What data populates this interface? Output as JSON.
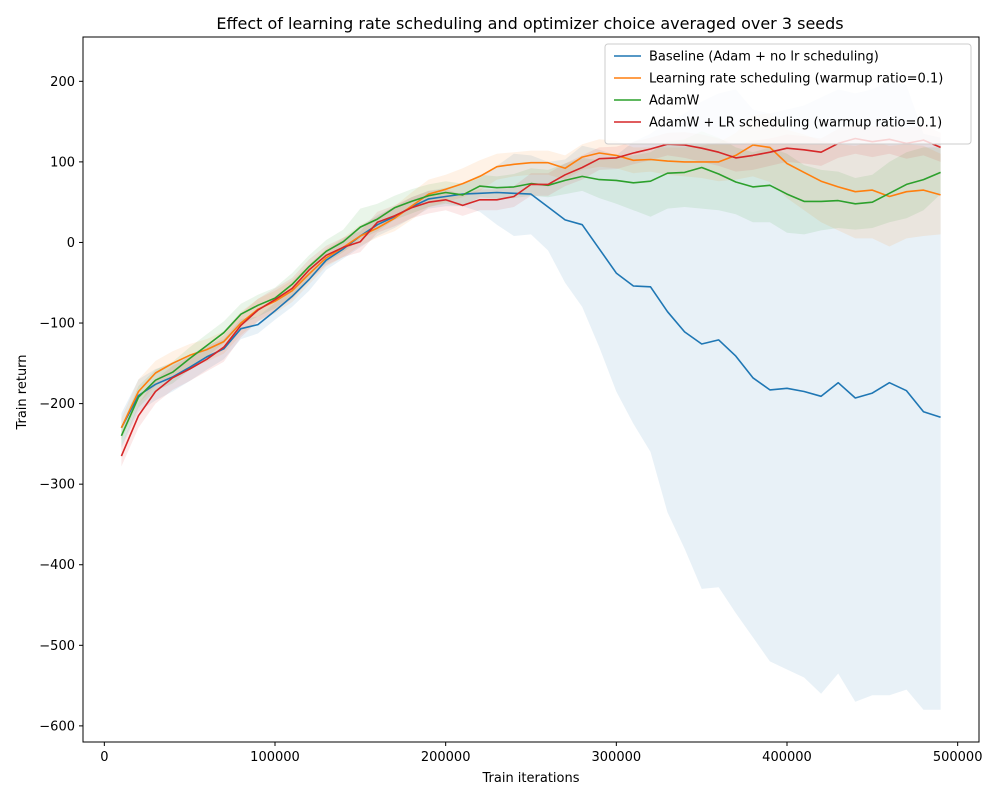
{
  "chart_data": {
    "type": "line",
    "title": "Effect of learning rate scheduling and optimizer choice averaged over 3 seeds",
    "xlabel": "Train iterations",
    "ylabel": "Train return",
    "xlim": [
      -12500,
      512500
    ],
    "ylim": [
      -620,
      255
    ],
    "xticks": [
      0,
      100000,
      200000,
      300000,
      400000,
      500000
    ],
    "yticks": [
      -600,
      -500,
      -400,
      -300,
      -200,
      -100,
      0,
      100,
      200
    ],
    "legend_position": "top-right",
    "grid": false,
    "x": [
      10000,
      20000,
      30000,
      40000,
      50000,
      60000,
      70000,
      80000,
      90000,
      100000,
      110000,
      120000,
      130000,
      140000,
      150000,
      160000,
      170000,
      180000,
      190000,
      200000,
      210000,
      220000,
      230000,
      240000,
      250000,
      260000,
      270000,
      280000,
      290000,
      300000,
      310000,
      320000,
      330000,
      340000,
      350000,
      360000,
      370000,
      380000,
      390000,
      400000,
      410000,
      420000,
      430000,
      440000,
      450000,
      460000,
      470000,
      480000,
      490000
    ],
    "series": [
      {
        "name": "Baseline (Adam + no lr scheduling)",
        "color": "#1f77b4",
        "values": [
          -230,
          -190,
          -176,
          -167,
          -155,
          -142,
          -132,
          -107,
          -102,
          -85,
          -67,
          -46,
          -22,
          -8,
          8,
          22,
          32,
          44,
          54,
          57,
          60,
          61,
          62,
          61,
          60,
          44,
          28,
          22,
          -8,
          -38,
          -54,
          -55,
          -86,
          -111,
          -126,
          -121,
          -141,
          -168,
          -183,
          -181,
          -185,
          -191,
          -174,
          -193,
          -187,
          -174,
          -184,
          -210,
          -217
        ],
        "lower": [
          -255,
          -210,
          -196,
          -185,
          -172,
          -158,
          -145,
          -120,
          -113,
          -96,
          -80,
          -60,
          -34,
          -20,
          -6,
          8,
          18,
          30,
          42,
          45,
          45,
          38,
          22,
          8,
          10,
          -10,
          -50,
          -80,
          -130,
          -185,
          -225,
          -260,
          -335,
          -380,
          -430,
          -428,
          -460,
          -490,
          -520,
          -530,
          -540,
          -560,
          -535,
          -570,
          -562,
          -562,
          -555,
          -580,
          -580
        ],
        "upper": [
          -212,
          -170,
          -157,
          -150,
          -140,
          -128,
          -120,
          -95,
          -92,
          -75,
          -56,
          -33,
          -10,
          4,
          20,
          34,
          44,
          56,
          64,
          68,
          72,
          80,
          95,
          110,
          108,
          100,
          103,
          120,
          115,
          108,
          125,
          135,
          150,
          160,
          175,
          185,
          190,
          165,
          160,
          165,
          170,
          180,
          190,
          185,
          190,
          200,
          195,
          135,
          130
        ]
      },
      {
        "name": "Learning rate scheduling (warmup ratio=0.1)",
        "color": "#ff7f0e",
        "values": [
          -230,
          -185,
          -162,
          -150,
          -140,
          -133,
          -123,
          -100,
          -83,
          -73,
          -60,
          -39,
          -19,
          -6,
          8,
          18,
          30,
          45,
          60,
          66,
          73,
          82,
          94,
          97,
          99,
          99,
          92,
          106,
          111,
          108,
          102,
          103,
          101,
          100,
          100,
          100,
          108,
          121,
          118,
          98,
          87,
          76,
          69,
          63,
          65,
          57,
          63,
          65,
          59
        ],
        "lower": [
          -245,
          -200,
          -178,
          -165,
          -155,
          -148,
          -138,
          -115,
          -98,
          -88,
          -74,
          -52,
          -30,
          -18,
          -4,
          6,
          14,
          28,
          44,
          50,
          56,
          64,
          78,
          82,
          84,
          84,
          78,
          90,
          94,
          92,
          86,
          88,
          84,
          82,
          80,
          76,
          78,
          82,
          75,
          55,
          40,
          25,
          15,
          5,
          5,
          -5,
          5,
          8,
          10
        ],
        "upper": [
          -218,
          -170,
          -147,
          -135,
          -126,
          -120,
          -110,
          -86,
          -70,
          -60,
          -47,
          -27,
          -8,
          6,
          22,
          32,
          45,
          62,
          78,
          84,
          92,
          102,
          110,
          112,
          114,
          114,
          108,
          122,
          128,
          126,
          118,
          118,
          118,
          118,
          120,
          124,
          136,
          158,
          160,
          140,
          134,
          126,
          122,
          120,
          125,
          120,
          122,
          120,
          110
        ]
      },
      {
        "name": "AdamW",
        "color": "#2ca02c",
        "values": [
          -240,
          -192,
          -171,
          -161,
          -144,
          -128,
          -112,
          -89,
          -78,
          -69,
          -52,
          -30,
          -11,
          1,
          19,
          29,
          43,
          51,
          58,
          62,
          59,
          70,
          68,
          69,
          73,
          71,
          77,
          82,
          78,
          77,
          74,
          76,
          86,
          87,
          93,
          85,
          75,
          69,
          71,
          60,
          51,
          51,
          52,
          48,
          50,
          61,
          72,
          78,
          87
        ],
        "lower": [
          -252,
          -205,
          -184,
          -175,
          -158,
          -142,
          -125,
          -102,
          -92,
          -82,
          -66,
          -44,
          -25,
          -12,
          4,
          14,
          28,
          36,
          44,
          48,
          45,
          56,
          54,
          55,
          58,
          56,
          60,
          64,
          55,
          48,
          40,
          32,
          42,
          44,
          42,
          40,
          35,
          25,
          25,
          12,
          10,
          15,
          18,
          16,
          18,
          25,
          30,
          40,
          60
        ],
        "upper": [
          -228,
          -178,
          -158,
          -148,
          -130,
          -114,
          -98,
          -76,
          -65,
          -56,
          -38,
          -16,
          3,
          16,
          42,
          48,
          58,
          66,
          72,
          76,
          73,
          84,
          82,
          85,
          92,
          90,
          98,
          105,
          102,
          106,
          108,
          112,
          125,
          128,
          138,
          130,
          118,
          112,
          118,
          110,
          96,
          90,
          88,
          80,
          84,
          100,
          112,
          118,
          118
        ]
      },
      {
        "name": "AdamW + LR scheduling (warmup ratio=0.1)",
        "color": "#d62728",
        "values": [
          -265,
          -215,
          -185,
          -168,
          -157,
          -145,
          -130,
          -103,
          -84,
          -71,
          -57,
          -34,
          -16,
          -6,
          1,
          25,
          33,
          43,
          50,
          53,
          46,
          53,
          53,
          57,
          72,
          72,
          84,
          93,
          104,
          105,
          111,
          116,
          122,
          121,
          117,
          112,
          105,
          108,
          112,
          117,
          115,
          112,
          123,
          129,
          125,
          128,
          123,
          127,
          118
        ],
        "lower": [
          -278,
          -230,
          -200,
          -183,
          -172,
          -160,
          -148,
          -118,
          -98,
          -85,
          -70,
          -47,
          -28,
          -18,
          -12,
          12,
          20,
          30,
          36,
          40,
          33,
          40,
          40,
          44,
          58,
          58,
          70,
          78,
          90,
          91,
          97,
          102,
          108,
          105,
          100,
          95,
          88,
          90,
          95,
          100,
          98,
          95,
          105,
          110,
          106,
          110,
          104,
          108,
          100
        ],
        "upper": [
          -252,
          -200,
          -170,
          -153,
          -142,
          -130,
          -115,
          -88,
          -70,
          -57,
          -44,
          -21,
          -4,
          6,
          14,
          38,
          46,
          56,
          64,
          66,
          59,
          66,
          66,
          70,
          86,
          86,
          98,
          108,
          118,
          119,
          125,
          130,
          136,
          137,
          134,
          129,
          122,
          126,
          129,
          134,
          132,
          129,
          141,
          148,
          144,
          146,
          142,
          146,
          136
        ]
      }
    ]
  }
}
